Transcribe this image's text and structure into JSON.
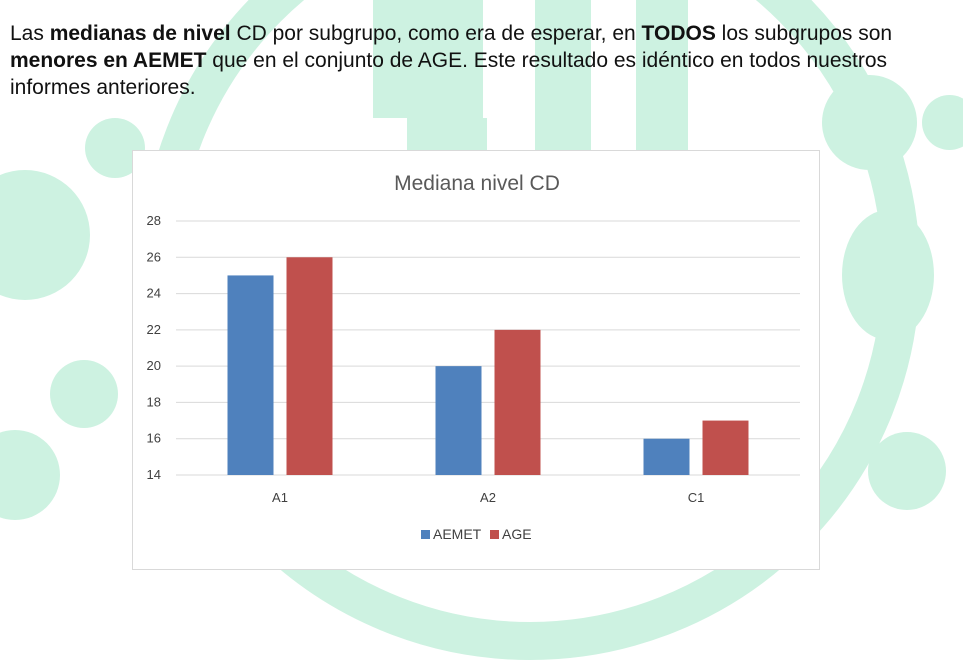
{
  "intro": {
    "t1": "Las ",
    "b1": "medianas de nivel",
    "t2": " CD por subgrupo, como era de esperar, en ",
    "b2": "TODOS",
    "t3": " los subgrupos son ",
    "b3": "menores en AEMET",
    "t4": " que en el conjunto de AGE. Este resultado es idéntico en todos nuestros informes anteriores."
  },
  "colors": {
    "background_accent": "#cdf2e1",
    "series_aemet": "#4f81bd",
    "series_age": "#c0504d",
    "gridline": "#d9d9d9"
  },
  "chart_data": {
    "type": "bar",
    "title": "Mediana nivel CD",
    "xlabel": "",
    "ylabel": "",
    "categories": [
      "A1",
      "A2",
      "C1"
    ],
    "series": [
      {
        "name": "AEMET",
        "values": [
          25,
          20,
          16
        ],
        "color": "#4f81bd"
      },
      {
        "name": "AGE",
        "values": [
          26,
          22,
          17
        ],
        "color": "#c0504d"
      }
    ],
    "ylim": [
      14,
      28
    ],
    "yticks": [
      14,
      16,
      18,
      20,
      22,
      24,
      26,
      28
    ],
    "grid": true,
    "legend": "bottom"
  }
}
